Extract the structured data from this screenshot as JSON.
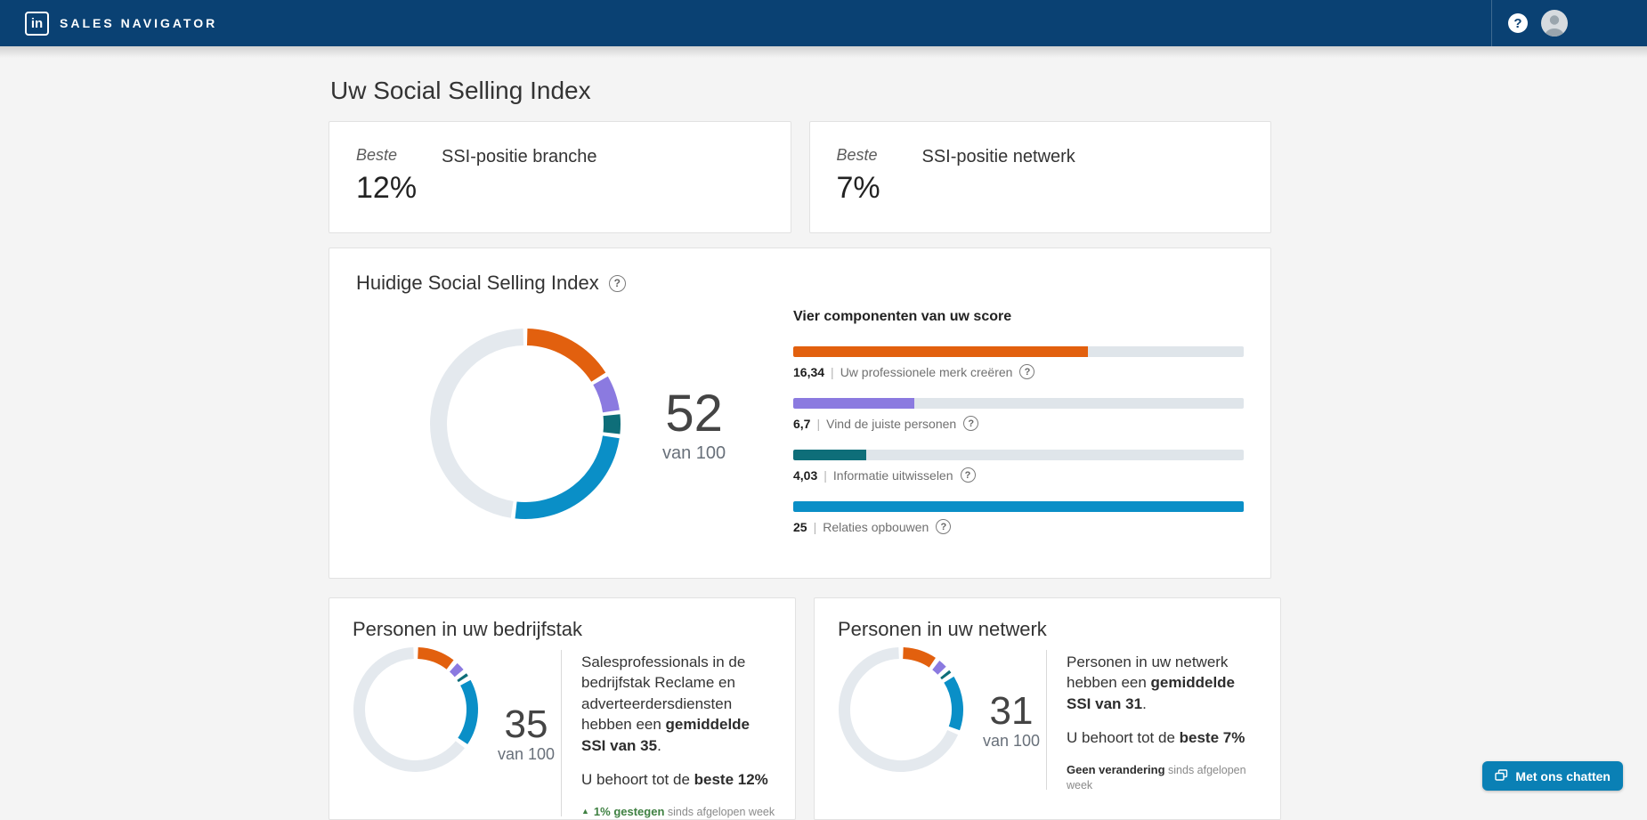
{
  "navbar": {
    "logo_text": "in",
    "brand": "SALES NAVIGATOR",
    "help_glyph": "?"
  },
  "icons": {
    "help_glyph": "?"
  },
  "page": {
    "title": "Uw Social Selling Index"
  },
  "rank_cards": [
    {
      "label": "Beste",
      "value": "12%",
      "title": "SSI-positie branche"
    },
    {
      "label": "Beste",
      "value": "7%",
      "title": "SSI-positie netwerk"
    }
  ],
  "ssi_card": {
    "title": "Huidige Social Selling Index"
  },
  "industry_card": {
    "title": "Personen in uw bedrijfstak",
    "paragraphs": [
      {
        "parts": [
          {
            "t": "Salesprofessionals in de bedrijfstak Reclame en adverteerdersdiensten hebben een "
          },
          {
            "t": "gemiddelde SSI van 35",
            "b": true
          },
          {
            "t": "."
          }
        ]
      },
      {
        "parts": [
          {
            "t": "U behoort tot de "
          },
          {
            "t": "beste 12%",
            "b": true
          }
        ]
      }
    ],
    "trend": {
      "arrow": "▲",
      "parts": [
        {
          "t": "1% gestegen",
          "b": true,
          "c": "green"
        },
        {
          "t": " sinds afgelopen week"
        }
      ]
    }
  },
  "network_card": {
    "title": "Personen in uw netwerk",
    "paragraphs": [
      {
        "parts": [
          {
            "t": "Personen in uw netwerk hebben een "
          },
          {
            "t": "gemiddelde SSI van 31",
            "b": true
          },
          {
            "t": "."
          }
        ]
      },
      {
        "parts": [
          {
            "t": "U behoort tot de "
          },
          {
            "t": "beste 7%",
            "b": true
          }
        ]
      }
    ],
    "trend": {
      "arrow": "",
      "parts": [
        {
          "t": "Geen verandering",
          "b": true
        },
        {
          "t": " sinds afgelopen week"
        }
      ]
    }
  },
  "chat": {
    "label": "Met ons chatten"
  },
  "chart_data": [
    {
      "type": "donut",
      "name": "current-ssi",
      "title": "Huidige Social Selling Index",
      "max": 100,
      "center_value": "52",
      "center_caption": "van 100",
      "track_color": "#e4e9ee",
      "segments": [
        {
          "label": "Uw professionele merk creëren",
          "value": 16.34,
          "color": "#e2600e"
        },
        {
          "label": "Vind de juiste personen",
          "value": 6.7,
          "color": "#8b7ae0"
        },
        {
          "label": "Informatie uitwisselen",
          "value": 4.03,
          "color": "#0e6e79"
        },
        {
          "label": "Relaties opbouwen",
          "value": 25,
          "color": "#0a8fc7"
        }
      ]
    },
    {
      "type": "bar",
      "name": "components",
      "title": "Vier componenten van uw score",
      "max": 25,
      "track_color": "#dfe5ea",
      "bars": [
        {
          "value_label": "16,34",
          "value": 16.34,
          "label": "Uw professionele merk creëren",
          "color": "#e2600e"
        },
        {
          "value_label": "6,7",
          "value": 6.7,
          "label": "Vind de juiste personen",
          "color": "#8b7ae0"
        },
        {
          "value_label": "4,03",
          "value": 4.03,
          "label": "Informatie uitwisselen",
          "color": "#0e6e79"
        },
        {
          "value_label": "25",
          "value": 25,
          "label": "Relaties opbouwen",
          "color": "#0a8fc7"
        }
      ]
    },
    {
      "type": "donut",
      "name": "industry",
      "title": "Personen in uw bedrijfstak",
      "max": 100,
      "center_value": "35",
      "center_caption": "van 100",
      "track_color": "#e4e9ee",
      "segments": [
        {
          "label": "Uw professionele merk creëren",
          "value": 11,
          "color": "#e2600e"
        },
        {
          "label": "Vind de juiste personen",
          "value": 3.5,
          "color": "#8b7ae0"
        },
        {
          "label": "Informatie uitwisselen",
          "value": 2,
          "color": "#0e6e79"
        },
        {
          "label": "Relaties opbouwen",
          "value": 18.5,
          "color": "#0a8fc7"
        }
      ]
    },
    {
      "type": "donut",
      "name": "network",
      "title": "Personen in uw netwerk",
      "max": 100,
      "center_value": "31",
      "center_caption": "van 100",
      "track_color": "#e4e9ee",
      "segments": [
        {
          "label": "Uw professionele merk creëren",
          "value": 10,
          "color": "#e2600e"
        },
        {
          "label": "Vind de juiste personen",
          "value": 3.5,
          "color": "#8b7ae0"
        },
        {
          "label": "Informatie uitwisselen",
          "value": 2,
          "color": "#0e6e79"
        },
        {
          "label": "Relaties opbouwen",
          "value": 15.5,
          "color": "#0a8fc7"
        }
      ]
    }
  ]
}
